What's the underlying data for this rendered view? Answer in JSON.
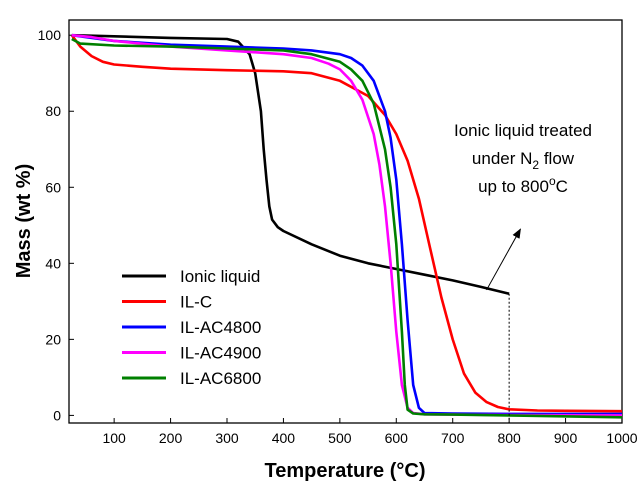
{
  "chart_data": {
    "type": "line",
    "xlabel": "Temperature (°C)",
    "ylabel": "Mass (wt %)",
    "xlim": [
      20,
      1000
    ],
    "ylim": [
      -2,
      104
    ],
    "xticks": [
      100,
      200,
      300,
      400,
      500,
      600,
      700,
      800,
      900,
      1000
    ],
    "yticks": [
      0,
      20,
      40,
      60,
      80,
      100
    ],
    "grid": false,
    "legend_position": "bottom-left",
    "series": [
      {
        "name": "Ionic liquid",
        "color": "#000000",
        "x": [
          25,
          100,
          200,
          300,
          320,
          340,
          350,
          360,
          365,
          370,
          375,
          380,
          390,
          400,
          450,
          500,
          550,
          600,
          650,
          700,
          750,
          800
        ],
        "y": [
          100,
          99.7,
          99.3,
          99,
          98.3,
          95,
          90,
          80,
          70,
          62,
          55,
          51.5,
          49.5,
          48.5,
          45,
          42,
          40,
          38.5,
          37,
          35.5,
          33.8,
          32
        ]
      },
      {
        "name": "IL-C",
        "color": "#ff0000",
        "x": [
          25,
          40,
          60,
          80,
          100,
          150,
          200,
          300,
          400,
          450,
          500,
          550,
          580,
          600,
          620,
          640,
          660,
          680,
          700,
          720,
          740,
          760,
          780,
          800,
          850,
          900,
          1000
        ],
        "y": [
          100,
          97,
          94.5,
          93,
          92.3,
          91.7,
          91.2,
          90.8,
          90.5,
          90,
          88,
          84,
          79,
          74,
          67,
          57,
          44,
          31,
          20,
          11,
          6,
          3.5,
          2.2,
          1.6,
          1.3,
          1.2,
          1.1
        ]
      },
      {
        "name": "IL-AC4800",
        "color": "#0000ff",
        "x": [
          25,
          100,
          200,
          300,
          400,
          450,
          500,
          520,
          540,
          560,
          580,
          590,
          600,
          610,
          620,
          630,
          640,
          650,
          700,
          800,
          1000
        ],
        "y": [
          100,
          98.5,
          97.5,
          97,
          96.5,
          96,
          95,
          94,
          92,
          88,
          80,
          73,
          62,
          45,
          25,
          8,
          2,
          0.6,
          0.5,
          0.4,
          0.4
        ]
      },
      {
        "name": "IL-AC4900",
        "color": "#ff00ff",
        "x": [
          25,
          60,
          100,
          200,
          300,
          400,
          450,
          480,
          500,
          520,
          540,
          560,
          570,
          580,
          590,
          600,
          610,
          620,
          630,
          650,
          700,
          800,
          1000
        ],
        "y": [
          100,
          99.5,
          98.5,
          97,
          96,
          95,
          94,
          92.5,
          91,
          88,
          83,
          74,
          66,
          55,
          40,
          22,
          8,
          2,
          0.6,
          0.3,
          0.2,
          0.1,
          0
        ]
      },
      {
        "name": "IL-AC6800",
        "color": "#008000",
        "x": [
          25,
          40,
          100,
          200,
          300,
          400,
          450,
          500,
          520,
          540,
          560,
          580,
          590,
          600,
          610,
          615,
          620,
          630,
          650,
          700,
          800,
          1000
        ],
        "y": [
          99,
          97.8,
          97.3,
          97,
          96.5,
          96,
          95,
          93,
          91,
          88,
          82,
          70,
          60,
          45,
          22,
          8,
          1.5,
          0.5,
          0.3,
          0.2,
          0,
          -0.5
        ]
      }
    ],
    "annotation": {
      "line1": "Ionic liquid treated",
      "line2_prefix": "under N",
      "line2_sub": "2",
      "line2_suffix": " flow",
      "line3_prefix": "up to 800",
      "line3_sup": "o",
      "line3_suffix": "C",
      "arrow_from": [
        760,
        33
      ],
      "arrow_to": [
        820,
        49
      ],
      "guide_x": 800
    }
  }
}
